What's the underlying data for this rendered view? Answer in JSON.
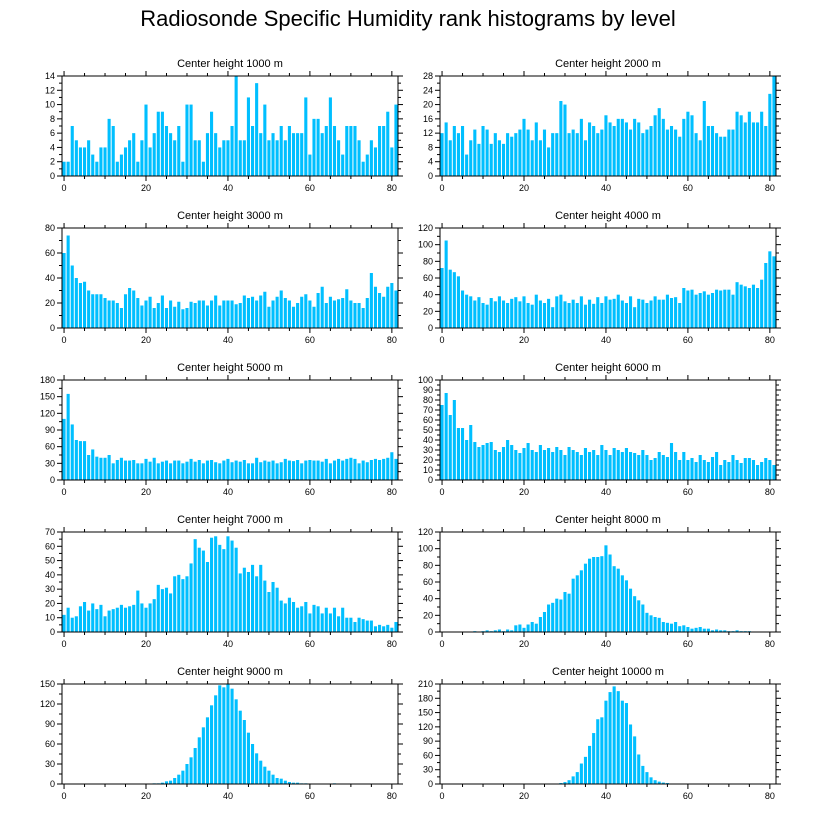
{
  "title": "Radiosonde Specific Humidity rank histograms by level",
  "bar_color": "#00BFFF",
  "chart_data": [
    {
      "type": "bar",
      "title": "Center height 1000 m",
      "xlabel": "",
      "ylabel": "",
      "xlim": [
        -0.5,
        81.5
      ],
      "ylim": [
        0,
        14
      ],
      "yticks": [
        0,
        2,
        4,
        6,
        8,
        10,
        12,
        14
      ],
      "xticks": [
        0,
        20,
        40,
        60,
        80
      ],
      "x_start": 0,
      "values": [
        2,
        2,
        7,
        5,
        4,
        4,
        5,
        3,
        2,
        4,
        4,
        8,
        7,
        2,
        3,
        4,
        5,
        6,
        2,
        5,
        10,
        4,
        6,
        9,
        9,
        7,
        6,
        5,
        7,
        2,
        10,
        10,
        5,
        5,
        2,
        6,
        9,
        6,
        4,
        5,
        5,
        7,
        14,
        5,
        5,
        11,
        7,
        13,
        6,
        10,
        5,
        6,
        5,
        7,
        5,
        7,
        6,
        6,
        6,
        11,
        3,
        8,
        8,
        6,
        7,
        11,
        7,
        5,
        3,
        7,
        7,
        7,
        5,
        2,
        3,
        5,
        4,
        7,
        7,
        9,
        4,
        10
      ]
    },
    {
      "type": "bar",
      "title": "Center height 2000 m",
      "xlabel": "",
      "ylabel": "",
      "xlim": [
        -0.5,
        81.5
      ],
      "ylim": [
        0,
        28
      ],
      "yticks": [
        0,
        4,
        8,
        12,
        16,
        20,
        24,
        28
      ],
      "xticks": [
        0,
        20,
        40,
        60,
        80
      ],
      "x_start": 0,
      "values": [
        12,
        15,
        10,
        14,
        12,
        14,
        6,
        10,
        13,
        9,
        14,
        13,
        9,
        12,
        10,
        9,
        12,
        11,
        12,
        13,
        16,
        13,
        10,
        15,
        10,
        13,
        8,
        12,
        12,
        21,
        20,
        12,
        13,
        12,
        16,
        10,
        15,
        14,
        12,
        13,
        17,
        15,
        14,
        16,
        16,
        15,
        13,
        16,
        15,
        12,
        13,
        14,
        17,
        19,
        16,
        13,
        14,
        13,
        11,
        16,
        18,
        17,
        12,
        10,
        21,
        14,
        14,
        12,
        11,
        11,
        13,
        13,
        18,
        17,
        15,
        18,
        15,
        15,
        18,
        14,
        23,
        28
      ]
    },
    {
      "type": "bar",
      "title": "Center height 3000 m",
      "xlabel": "",
      "ylabel": "",
      "xlim": [
        -0.5,
        81.5
      ],
      "ylim": [
        0,
        80
      ],
      "yticks": [
        0,
        20,
        40,
        60,
        80
      ],
      "xticks": [
        0,
        20,
        40,
        60,
        80
      ],
      "x_start": 0,
      "values": [
        60,
        74,
        50,
        40,
        36,
        37,
        30,
        27,
        27,
        27,
        24,
        22,
        22,
        20,
        16,
        27,
        32,
        30,
        24,
        18,
        22,
        25,
        16,
        20,
        26,
        16,
        22,
        17,
        21,
        15,
        16,
        21,
        20,
        22,
        22,
        18,
        22,
        26,
        18,
        22,
        22,
        22,
        19,
        20,
        26,
        24,
        25,
        22,
        26,
        29,
        17,
        22,
        25,
        30,
        24,
        22,
        17,
        20,
        25,
        27,
        22,
        17,
        28,
        33,
        20,
        25,
        22,
        23,
        24,
        31,
        22,
        20,
        20,
        16,
        24,
        44,
        33,
        28,
        25,
        33,
        36,
        30
      ]
    },
    {
      "type": "bar",
      "title": "Center height 4000 m",
      "xlabel": "",
      "ylabel": "",
      "xlim": [
        -0.5,
        81.5
      ],
      "ylim": [
        0,
        120
      ],
      "yticks": [
        0,
        20,
        40,
        60,
        80,
        100,
        120
      ],
      "xticks": [
        0,
        20,
        40,
        60,
        80
      ],
      "x_start": 0,
      "values": [
        72,
        105,
        70,
        67,
        62,
        45,
        40,
        38,
        33,
        37,
        30,
        28,
        36,
        32,
        38,
        33,
        30,
        35,
        37,
        32,
        38,
        30,
        28,
        40,
        33,
        30,
        35,
        25,
        38,
        40,
        32,
        30,
        34,
        30,
        38,
        28,
        34,
        29,
        37,
        30,
        38,
        34,
        35,
        40,
        33,
        30,
        38,
        25,
        35,
        34,
        30,
        33,
        38,
        34,
        34,
        40,
        36,
        37,
        30,
        48,
        45,
        46,
        40,
        42,
        44,
        40,
        42,
        46,
        45,
        46,
        46,
        40,
        55,
        52,
        50,
        48,
        52,
        48,
        58,
        78,
        92,
        86
      ]
    },
    {
      "type": "bar",
      "title": "Center height 5000 m",
      "xlabel": "",
      "ylabel": "",
      "xlim": [
        -0.5,
        81.5
      ],
      "ylim": [
        0,
        180
      ],
      "yticks": [
        0,
        30,
        60,
        90,
        120,
        150,
        180
      ],
      "xticks": [
        0,
        20,
        40,
        60,
        80
      ],
      "x_start": 0,
      "values": [
        110,
        155,
        100,
        72,
        70,
        70,
        45,
        55,
        42,
        40,
        40,
        45,
        30,
        36,
        40,
        35,
        35,
        36,
        30,
        30,
        38,
        33,
        40,
        30,
        33,
        35,
        30,
        35,
        35,
        30,
        33,
        38,
        33,
        36,
        30,
        35,
        36,
        32,
        30,
        35,
        38,
        32,
        35,
        33,
        36,
        30,
        30,
        40,
        32,
        35,
        33,
        35,
        30,
        32,
        38,
        35,
        34,
        36,
        30,
        35,
        36,
        35,
        35,
        33,
        38,
        30,
        35,
        38,
        35,
        38,
        40,
        38,
        30,
        35,
        32,
        36,
        38,
        36,
        38,
        40,
        50,
        38
      ]
    },
    {
      "type": "bar",
      "title": "Center height 6000 m",
      "xlabel": "",
      "ylabel": "",
      "xlim": [
        -0.5,
        81.5
      ],
      "ylim": [
        0,
        100
      ],
      "yticks": [
        0,
        10,
        20,
        30,
        40,
        50,
        60,
        70,
        80,
        90,
        100
      ],
      "xticks": [
        0,
        20,
        40,
        60,
        80
      ],
      "x_start": 0,
      "values": [
        75,
        87,
        65,
        80,
        52,
        52,
        40,
        55,
        38,
        33,
        35,
        37,
        38,
        30,
        28,
        33,
        40,
        35,
        30,
        27,
        32,
        37,
        30,
        28,
        35,
        30,
        32,
        28,
        33,
        30,
        25,
        33,
        30,
        28,
        25,
        32,
        28,
        30,
        25,
        35,
        30,
        25,
        32,
        30,
        28,
        32,
        28,
        27,
        25,
        30,
        25,
        20,
        22,
        28,
        25,
        23,
        37,
        28,
        20,
        28,
        20,
        22,
        18,
        25,
        20,
        18,
        23,
        28,
        15,
        20,
        18,
        25,
        20,
        17,
        22,
        22,
        20,
        15,
        18,
        22,
        20,
        15
      ]
    },
    {
      "type": "bar",
      "title": "Center height 7000 m",
      "xlabel": "",
      "ylabel": "",
      "xlim": [
        -0.5,
        81.5
      ],
      "ylim": [
        0,
        70
      ],
      "yticks": [
        0,
        10,
        20,
        30,
        40,
        50,
        60,
        70
      ],
      "xticks": [
        0,
        20,
        40,
        60,
        80
      ],
      "x_start": 0,
      "values": [
        12,
        17,
        10,
        11,
        18,
        21,
        15,
        20,
        16,
        19,
        11,
        15,
        16,
        17,
        19,
        17,
        18,
        19,
        29,
        20,
        17,
        20,
        23,
        33,
        30,
        31,
        27,
        39,
        40,
        37,
        39,
        48,
        65,
        59,
        57,
        49,
        66,
        67,
        61,
        58,
        67,
        64,
        59,
        41,
        45,
        42,
        47,
        39,
        47,
        36,
        28,
        35,
        31,
        22,
        20,
        24,
        21,
        17,
        18,
        21,
        13,
        19,
        18,
        13,
        17,
        13,
        17,
        11,
        17,
        10,
        10,
        7,
        10,
        9,
        8,
        8,
        4,
        5,
        4,
        5,
        3,
        7
      ]
    },
    {
      "type": "bar",
      "title": "Center height 8000 m",
      "xlabel": "",
      "ylabel": "",
      "xlim": [
        -0.5,
        81.5
      ],
      "ylim": [
        0,
        120
      ],
      "yticks": [
        0,
        20,
        40,
        60,
        80,
        100,
        120
      ],
      "xticks": [
        0,
        20,
        40,
        60,
        80
      ],
      "x_start": 0,
      "values": [
        0,
        0,
        0,
        0,
        0,
        0,
        0,
        0,
        1,
        0,
        1,
        2,
        1,
        2,
        3,
        1,
        3,
        2,
        8,
        9,
        5,
        9,
        12,
        10,
        18,
        24,
        33,
        35,
        40,
        39,
        48,
        46,
        64,
        68,
        74,
        82,
        88,
        90,
        90,
        91,
        104,
        93,
        79,
        76,
        68,
        62,
        52,
        43,
        38,
        33,
        23,
        20,
        18,
        17,
        12,
        11,
        10,
        12,
        7,
        8,
        6,
        4,
        5,
        6,
        4,
        4,
        2,
        3,
        2,
        2,
        1,
        1,
        2,
        1,
        1,
        1,
        0,
        0,
        0,
        0,
        0,
        0
      ]
    },
    {
      "type": "bar",
      "title": "Center height 9000 m",
      "xlabel": "",
      "ylabel": "",
      "xlim": [
        -0.5,
        81.5
      ],
      "ylim": [
        0,
        150
      ],
      "yticks": [
        0,
        30,
        60,
        90,
        120,
        150
      ],
      "xticks": [
        0,
        20,
        40,
        60,
        80
      ],
      "x_start": 0,
      "values": [
        0,
        0,
        0,
        0,
        0,
        0,
        0,
        0,
        0,
        0,
        0,
        0,
        0,
        0,
        0,
        0,
        0,
        0,
        0,
        0,
        0,
        0,
        1,
        1,
        2,
        4,
        5,
        9,
        14,
        20,
        30,
        40,
        54,
        70,
        85,
        100,
        118,
        133,
        148,
        145,
        150,
        143,
        127,
        110,
        96,
        77,
        60,
        46,
        35,
        26,
        20,
        14,
        9,
        8,
        5,
        3,
        2,
        2,
        1,
        1,
        0,
        0,
        0,
        0,
        0,
        0,
        1,
        0,
        0,
        0,
        0,
        0,
        0,
        0,
        0,
        0,
        0,
        0,
        0,
        0,
        0,
        0
      ]
    },
    {
      "type": "bar",
      "title": "Center height 10000 m",
      "xlabel": "",
      "ylabel": "",
      "xlim": [
        -0.5,
        81.5
      ],
      "ylim": [
        0,
        210
      ],
      "yticks": [
        0,
        30,
        60,
        90,
        120,
        150,
        180,
        210
      ],
      "xticks": [
        0,
        20,
        40,
        60,
        80
      ],
      "x_start": 0,
      "values": [
        0,
        0,
        0,
        0,
        0,
        0,
        0,
        0,
        0,
        0,
        0,
        0,
        0,
        0,
        0,
        0,
        0,
        0,
        0,
        0,
        0,
        0,
        0,
        0,
        0,
        0,
        0,
        0,
        1,
        2,
        4,
        8,
        16,
        25,
        43,
        57,
        80,
        107,
        136,
        140,
        175,
        193,
        205,
        195,
        175,
        170,
        125,
        100,
        62,
        38,
        25,
        14,
        8,
        5,
        3,
        2,
        1,
        1,
        0,
        0,
        0,
        0,
        0,
        0,
        0,
        0,
        0,
        0,
        0,
        0,
        0,
        0,
        0,
        0,
        0,
        0,
        0,
        0,
        0,
        0,
        0,
        0
      ]
    }
  ]
}
